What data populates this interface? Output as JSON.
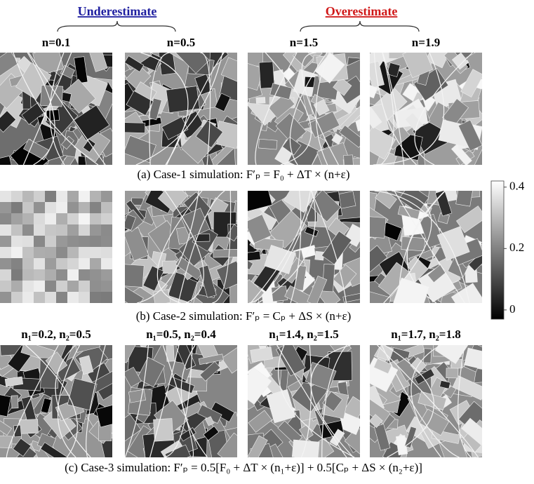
{
  "header": {
    "underestimate": "Underestimate",
    "overestimate": "Overestimate"
  },
  "rows": [
    {
      "labels": [
        "n=0.1",
        "n=0.5",
        "n=1.5",
        "n=1.9"
      ],
      "caption": "(a) Case-1 simulation: F′ₚ = F₀ + ΔT × (n+ε)"
    },
    {
      "caption": "(b) Case-2 simulation: F′ₚ = Cₚ + ΔS × (n+ε)"
    },
    {
      "labels": [
        "n₁=0.2, n₂=0.5",
        "n₁=0.5, n₂=0.4",
        "n₁=1.4, n₂=1.5",
        "n₁=1.7, n₂=1.8"
      ],
      "caption": "(c) Case-3 simulation: F′ₚ = 0.5[F₀ + ΔT × (n₁+ε)] + 0.5[Cₚ + ΔS × (n₂+ε)]"
    }
  ],
  "colorbar": {
    "lim": [
      -0.03,
      0.42
    ],
    "ticks": [
      0,
      0.2,
      0.4
    ]
  }
}
